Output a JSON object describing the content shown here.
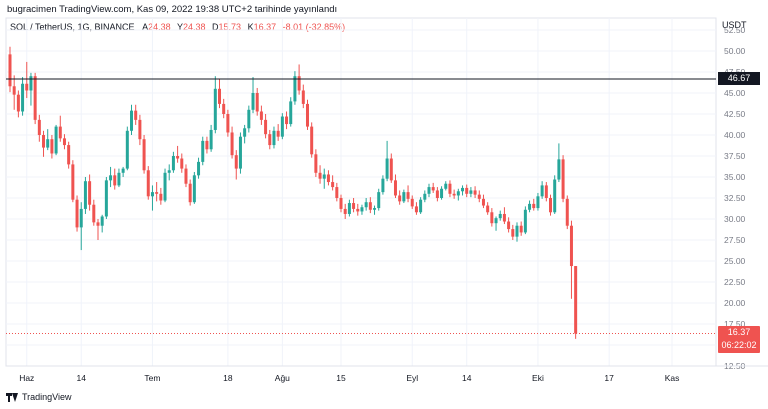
{
  "caption": "bugracimen TradingView.com, Kas 09, 2022 19:38 UTC+2 tarihinde yayınlandı",
  "legend": {
    "symbol": "SOL / TetherUS, 1G, BINANCE",
    "open_label": "A",
    "open": "24.38",
    "high_label": "Y",
    "high": "24.38",
    "low_label": "D",
    "low": "15.73",
    "close_label": "K",
    "close": "16.37",
    "change": "-8.01 (-32.85%)"
  },
  "currency": "USDT",
  "footer": {
    "brand": "TradingView"
  },
  "colors": {
    "up": "#26a69a",
    "down": "#ef5350",
    "hline": "#131722",
    "price_line": "#ef5350"
  },
  "chart_data": {
    "type": "candlestick",
    "ylim": [
      12.5,
      52.5
    ],
    "y_ticks": [
      "52.50",
      "50.00",
      "47.50",
      "45.00",
      "42.50",
      "40.00",
      "37.50",
      "35.00",
      "32.50",
      "30.00",
      "27.50",
      "25.00",
      "22.50",
      "20.00",
      "17.50",
      "15.00",
      "12.50"
    ],
    "x_ticks": [
      {
        "label": "Haz",
        "index": 4
      },
      {
        "label": "14",
        "index": 17
      },
      {
        "label": "Tem",
        "index": 34
      },
      {
        "label": "18",
        "index": 52
      },
      {
        "label": "Ağu",
        "index": 65
      },
      {
        "label": "15",
        "index": 79
      },
      {
        "label": "Eyl",
        "index": 96
      },
      {
        "label": "14",
        "index": 109
      },
      {
        "label": "Eki",
        "index": 126
      },
      {
        "label": "17",
        "index": 143
      },
      {
        "label": "Kas",
        "index": 158
      }
    ],
    "horizontal_line": 46.67,
    "horizontal_line_label": "46.67",
    "last_price": 16.37,
    "last_price_label": "16.37",
    "countdown": "06:22:02",
    "candles": [
      [
        49.6,
        50.5,
        45.1,
        45.8
      ],
      [
        45.8,
        47.1,
        43.0,
        44.8
      ],
      [
        44.8,
        45.3,
        42.1,
        42.8
      ],
      [
        42.8,
        46.9,
        42.3,
        46.1
      ],
      [
        46.1,
        48.7,
        44.4,
        45.3
      ],
      [
        45.3,
        47.4,
        43.5,
        47.0
      ],
      [
        47.0,
        47.4,
        41.3,
        41.8
      ],
      [
        41.8,
        42.4,
        39.2,
        40.0
      ],
      [
        40.0,
        40.5,
        37.4,
        38.5
      ],
      [
        38.5,
        40.7,
        38.2,
        39.5
      ],
      [
        39.5,
        40.0,
        37.2,
        37.8
      ],
      [
        37.8,
        41.2,
        37.6,
        41.0
      ],
      [
        41.0,
        42.3,
        39.2,
        39.6
      ],
      [
        39.6,
        40.1,
        38.3,
        38.8
      ],
      [
        38.8,
        39.2,
        36.0,
        36.5
      ],
      [
        36.5,
        37.0,
        32.0,
        32.3
      ],
      [
        32.3,
        32.8,
        28.5,
        29.0
      ],
      [
        29.0,
        32.0,
        26.3,
        31.2
      ],
      [
        31.2,
        35.0,
        30.6,
        34.5
      ],
      [
        34.5,
        35.3,
        31.0,
        31.7
      ],
      [
        31.7,
        32.3,
        29.2,
        29.6
      ],
      [
        29.6,
        30.0,
        27.5,
        29.2
      ],
      [
        29.2,
        30.5,
        28.4,
        30.3
      ],
      [
        30.3,
        35.0,
        30.0,
        34.6
      ],
      [
        34.6,
        36.2,
        33.8,
        35.2
      ],
      [
        35.2,
        36.0,
        33.5,
        34.0
      ],
      [
        34.0,
        36.0,
        33.8,
        35.5
      ],
      [
        35.5,
        36.2,
        35.0,
        36.0
      ],
      [
        36.0,
        41.0,
        35.8,
        40.5
      ],
      [
        40.5,
        43.6,
        40.0,
        42.9
      ],
      [
        42.9,
        43.6,
        41.2,
        41.8
      ],
      [
        41.8,
        42.4,
        38.8,
        39.5
      ],
      [
        39.5,
        40.0,
        35.4,
        35.8
      ],
      [
        35.8,
        36.3,
        32.3,
        32.7
      ],
      [
        32.7,
        34.0,
        31.0,
        33.2
      ],
      [
        33.2,
        34.4,
        32.1,
        33.0
      ],
      [
        33.0,
        33.7,
        31.7,
        32.2
      ],
      [
        32.2,
        36.0,
        32.0,
        35.5
      ],
      [
        35.5,
        36.5,
        34.6,
        35.8
      ],
      [
        35.8,
        38.0,
        35.5,
        37.5
      ],
      [
        37.5,
        38.7,
        36.7,
        37.2
      ],
      [
        37.2,
        37.8,
        35.5,
        36.0
      ],
      [
        36.0,
        36.5,
        33.8,
        34.2
      ],
      [
        34.2,
        34.7,
        31.6,
        32.0
      ],
      [
        32.0,
        35.6,
        31.8,
        35.2
      ],
      [
        35.2,
        37.3,
        34.8,
        36.8
      ],
      [
        36.8,
        39.8,
        36.4,
        39.3
      ],
      [
        39.3,
        39.8,
        37.8,
        38.3
      ],
      [
        38.3,
        41.2,
        38.0,
        40.6
      ],
      [
        40.6,
        47.0,
        40.2,
        45.5
      ],
      [
        45.5,
        46.7,
        43.2,
        43.7
      ],
      [
        43.7,
        44.3,
        42.0,
        42.5
      ],
      [
        42.5,
        43.0,
        39.8,
        40.3
      ],
      [
        40.3,
        41.0,
        37.2,
        37.6
      ],
      [
        37.6,
        38.2,
        34.7,
        36.0
      ],
      [
        36.0,
        40.3,
        35.4,
        39.8
      ],
      [
        39.8,
        41.2,
        39.0,
        40.8
      ],
      [
        40.8,
        43.5,
        40.3,
        43.0
      ],
      [
        43.0,
        46.9,
        42.6,
        45.0
      ],
      [
        45.0,
        45.6,
        42.3,
        42.8
      ],
      [
        42.8,
        43.5,
        41.2,
        41.8
      ],
      [
        41.8,
        42.5,
        39.6,
        40.1
      ],
      [
        40.1,
        40.6,
        38.3,
        38.8
      ],
      [
        38.8,
        41.0,
        38.4,
        40.5
      ],
      [
        40.5,
        41.3,
        39.3,
        39.8
      ],
      [
        39.8,
        42.6,
        39.5,
        42.2
      ],
      [
        42.2,
        42.8,
        40.7,
        41.3
      ],
      [
        41.3,
        44.5,
        41.0,
        44.0
      ],
      [
        44.0,
        47.6,
        43.6,
        47.0
      ],
      [
        47.0,
        48.4,
        44.8,
        45.3
      ],
      [
        45.3,
        46.0,
        43.2,
        43.7
      ],
      [
        43.7,
        44.2,
        40.6,
        41.0
      ],
      [
        41.0,
        41.5,
        37.3,
        37.7
      ],
      [
        37.7,
        38.3,
        35.0,
        35.5
      ],
      [
        35.5,
        36.4,
        34.2,
        34.8
      ],
      [
        34.8,
        36.0,
        33.6,
        35.3
      ],
      [
        35.3,
        35.8,
        34.0,
        34.4
      ],
      [
        34.4,
        35.2,
        33.4,
        33.8
      ],
      [
        33.8,
        34.3,
        32.1,
        32.5
      ],
      [
        32.5,
        32.9,
        30.8,
        31.2
      ],
      [
        31.2,
        31.8,
        30.0,
        30.6
      ],
      [
        30.6,
        32.3,
        30.3,
        31.9
      ],
      [
        31.9,
        32.5,
        30.8,
        31.2
      ],
      [
        31.2,
        31.8,
        30.4,
        30.9
      ],
      [
        30.9,
        31.7,
        30.5,
        31.4
      ],
      [
        31.4,
        32.5,
        31.0,
        32.0
      ],
      [
        32.0,
        32.6,
        30.7,
        31.1
      ],
      [
        31.1,
        31.6,
        30.5,
        31.3
      ],
      [
        31.3,
        33.6,
        31.0,
        33.2
      ],
      [
        33.2,
        35.2,
        32.9,
        34.8
      ],
      [
        34.8,
        39.3,
        34.5,
        37.2
      ],
      [
        37.2,
        37.8,
        34.3,
        34.6
      ],
      [
        34.6,
        35.3,
        32.5,
        32.8
      ],
      [
        32.8,
        33.4,
        31.7,
        32.1
      ],
      [
        32.1,
        33.5,
        31.9,
        33.2
      ],
      [
        33.2,
        34.0,
        32.0,
        32.4
      ],
      [
        32.4,
        32.8,
        31.2,
        31.5
      ],
      [
        31.5,
        32.0,
        30.5,
        30.8
      ],
      [
        30.8,
        32.6,
        30.6,
        32.3
      ],
      [
        32.3,
        33.4,
        32.0,
        33.0
      ],
      [
        33.0,
        34.2,
        32.6,
        33.8
      ],
      [
        33.8,
        34.3,
        33.1,
        33.4
      ],
      [
        33.4,
        33.8,
        32.1,
        32.5
      ],
      [
        32.5,
        33.9,
        32.3,
        33.6
      ],
      [
        33.6,
        34.5,
        33.4,
        34.2
      ],
      [
        34.2,
        34.6,
        32.6,
        33.0
      ],
      [
        33.0,
        33.5,
        32.4,
        32.8
      ],
      [
        32.8,
        33.6,
        32.2,
        33.3
      ],
      [
        33.3,
        34.0,
        32.8,
        33.7
      ],
      [
        33.7,
        34.1,
        32.6,
        33.0
      ],
      [
        33.0,
        33.8,
        32.6,
        33.4
      ],
      [
        33.4,
        33.9,
        32.5,
        32.9
      ],
      [
        32.9,
        33.4,
        32.0,
        32.4
      ],
      [
        32.4,
        32.9,
        31.3,
        31.6
      ],
      [
        31.6,
        32.0,
        30.5,
        30.8
      ],
      [
        30.8,
        31.3,
        29.1,
        29.5
      ],
      [
        29.5,
        30.3,
        28.6,
        30.1
      ],
      [
        30.1,
        31.0,
        29.8,
        30.6
      ],
      [
        30.6,
        31.4,
        29.4,
        29.7
      ],
      [
        29.7,
        30.2,
        28.4,
        28.8
      ],
      [
        28.8,
        29.3,
        27.5,
        27.9
      ],
      [
        27.9,
        29.6,
        27.3,
        29.2
      ],
      [
        29.2,
        29.7,
        28.0,
        28.4
      ],
      [
        28.4,
        31.5,
        28.2,
        31.1
      ],
      [
        31.1,
        32.2,
        30.8,
        31.8
      ],
      [
        31.8,
        32.4,
        31.0,
        31.3
      ],
      [
        31.3,
        33.1,
        31.0,
        32.7
      ],
      [
        32.7,
        34.5,
        32.4,
        34.0
      ],
      [
        34.0,
        34.4,
        32.1,
        32.5
      ],
      [
        32.5,
        32.9,
        30.4,
        30.8
      ],
      [
        30.8,
        35.2,
        30.6,
        34.7
      ],
      [
        34.7,
        39.0,
        34.4,
        37.1
      ],
      [
        37.1,
        37.6,
        32.0,
        32.4
      ],
      [
        32.4,
        32.8,
        28.8,
        29.2
      ],
      [
        29.2,
        29.8,
        20.5,
        24.4
      ],
      [
        24.4,
        24.4,
        15.73,
        16.37
      ]
    ]
  }
}
